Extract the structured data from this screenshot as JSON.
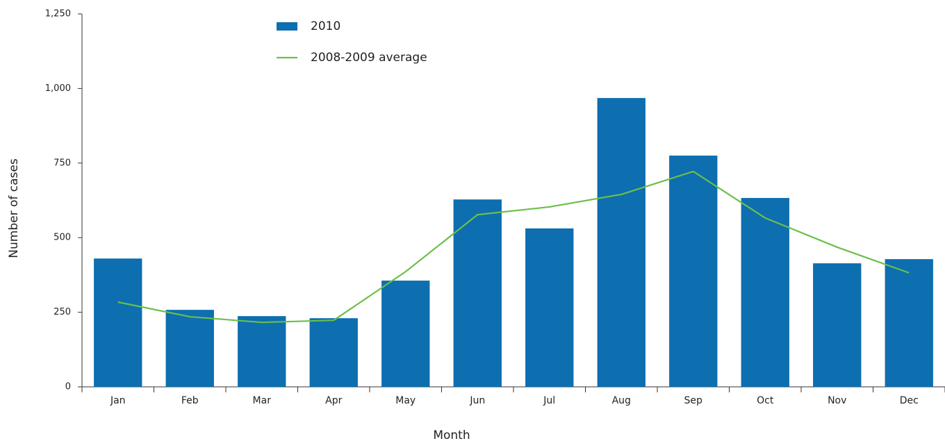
{
  "chart_data": {
    "type": "bar",
    "x_label": "Month",
    "y_label": "Number of cases",
    "categories": [
      "Jan",
      "Feb",
      "Mar",
      "Apr",
      "May",
      "Jun",
      "Jul",
      "Aug",
      "Sep",
      "Oct",
      "Nov",
      "Dec"
    ],
    "series": [
      {
        "name": "2010",
        "type": "bar",
        "color": "#0d6eb0",
        "values": [
          430,
          258,
          237,
          230,
          356,
          628,
          531,
          968,
          775,
          633,
          414,
          428
        ]
      },
      {
        "name": "2008-2009 average",
        "type": "line",
        "color": "#6abf4b",
        "values": [
          284,
          235,
          216,
          223,
          386,
          577,
          603,
          645,
          722,
          566,
          468,
          382
        ]
      }
    ],
    "ylim": [
      0,
      1250
    ],
    "yticks": [
      0,
      250,
      500,
      750,
      {
        "value": 1000,
        "label": "1,000"
      },
      {
        "value": 1250,
        "label": "1,250"
      }
    ],
    "grid": false
  }
}
